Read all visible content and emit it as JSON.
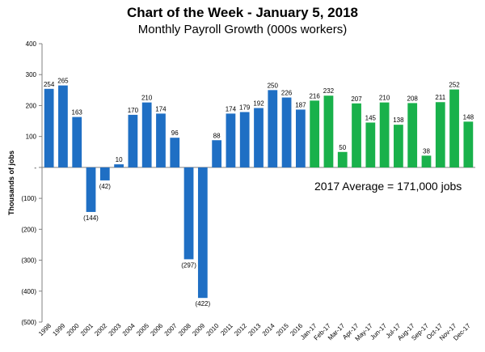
{
  "chart_data": {
    "type": "bar",
    "title": "Chart of the Week - January 5, 2018",
    "subtitle": "Monthly Payroll Growth (000s workers)",
    "xlabel": "",
    "ylabel": "Thousands of jobs",
    "ylim": [
      -500,
      400
    ],
    "yticks": [
      400,
      300,
      200,
      100,
      0,
      -100,
      -200,
      -300,
      -400,
      -500
    ],
    "ytick_labels": [
      "400",
      "300",
      "200",
      "100",
      "-",
      "(100)",
      "(200)",
      "(300)",
      "(400)",
      "(500)"
    ],
    "annotation": "2017 Average = 171,000 jobs",
    "grid": false,
    "categories": [
      "1998",
      "1999",
      "2000",
      "2001",
      "2002",
      "2003",
      "2004",
      "2005",
      "2006",
      "2007",
      "2008",
      "2009",
      "2010",
      "2011",
      "2012",
      "2013",
      "2014",
      "2015",
      "2016",
      "Jan-17",
      "Feb-17",
      "Mar-17",
      "Apr-17",
      "May-17",
      "Jun-17",
      "Jul-17",
      "Aug-17",
      "Sep-17",
      "Oct-17",
      "Nov-17",
      "Dec-17"
    ],
    "values": [
      254,
      265,
      163,
      -144,
      -42,
      10,
      170,
      210,
      174,
      96,
      -297,
      -422,
      88,
      174,
      179,
      192,
      250,
      226,
      187,
      216,
      232,
      50,
      207,
      145,
      210,
      138,
      208,
      38,
      211,
      252,
      148
    ],
    "value_labels": [
      "254",
      "265",
      "163",
      "(144)",
      "(42)",
      "10",
      "170",
      "210",
      "174",
      "96",
      "(297)",
      "(422)",
      "88",
      "174",
      "179",
      "192",
      "250",
      "226",
      "187",
      "216",
      "232",
      "50",
      "207",
      "145",
      "210",
      "138",
      "208",
      "38",
      "211",
      "252",
      "148"
    ],
    "colors": {
      "annual": "#1f6fc4",
      "monthly_2017": "#19b14b",
      "axis": "#808080"
    }
  }
}
